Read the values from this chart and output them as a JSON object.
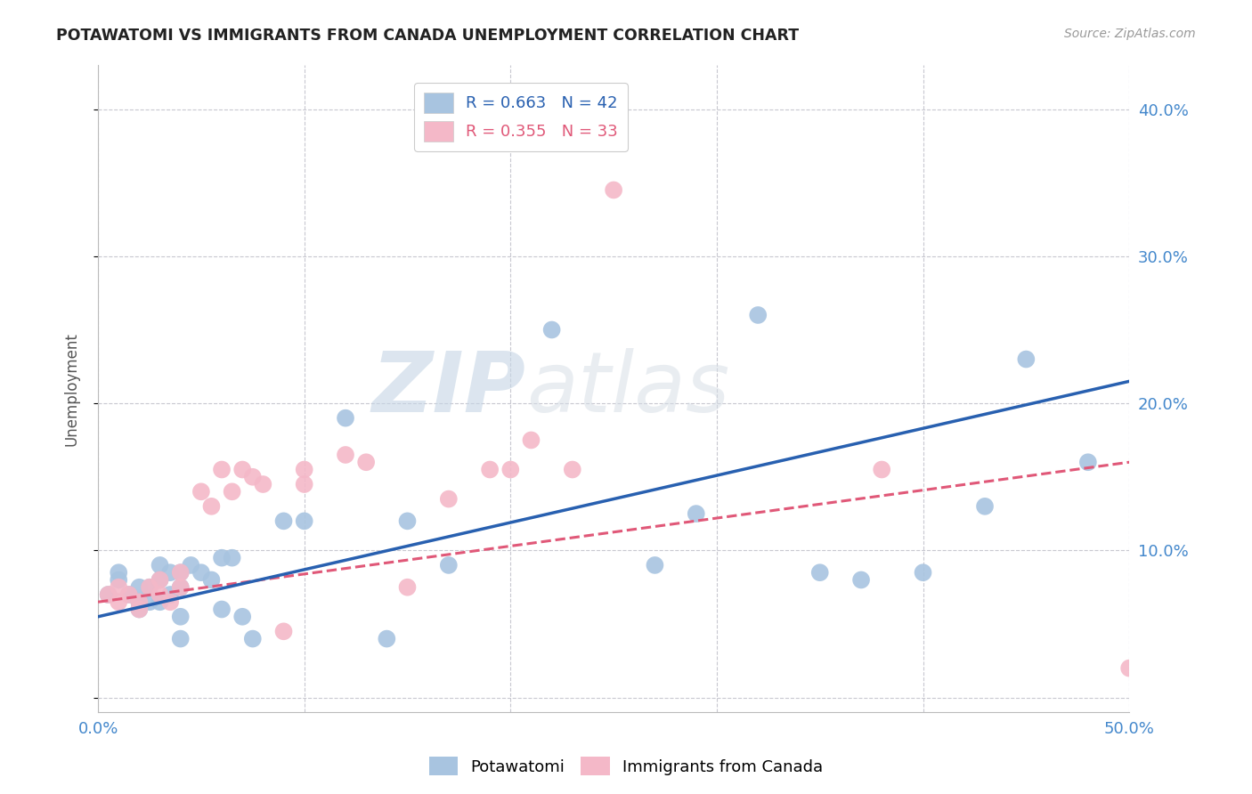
{
  "title": "POTAWATOMI VS IMMIGRANTS FROM CANADA UNEMPLOYMENT CORRELATION CHART",
  "source": "Source: ZipAtlas.com",
  "ylabel": "Unemployment",
  "xlim": [
    0.0,
    0.5
  ],
  "ylim": [
    -0.01,
    0.43
  ],
  "xticks": [
    0.0,
    0.1,
    0.2,
    0.3,
    0.4,
    0.5
  ],
  "xtick_labels": [
    "0.0%",
    "",
    "",
    "",
    "",
    "50.0%"
  ],
  "yticks": [
    0.0,
    0.1,
    0.2,
    0.3,
    0.4
  ],
  "ytick_labels": [
    "",
    "10.0%",
    "20.0%",
    "30.0%",
    "40.0%"
  ],
  "blue_R": 0.663,
  "blue_N": 42,
  "pink_R": 0.355,
  "pink_N": 33,
  "blue_color": "#a8c4e0",
  "pink_color": "#f4b8c8",
  "blue_line_color": "#2860b0",
  "pink_line_color": "#e05878",
  "legend_label_blue": "Potawatomi",
  "legend_label_pink": "Immigrants from Canada",
  "blue_scatter_x": [
    0.005,
    0.01,
    0.01,
    0.015,
    0.02,
    0.02,
    0.02,
    0.025,
    0.025,
    0.03,
    0.03,
    0.03,
    0.035,
    0.035,
    0.04,
    0.04,
    0.04,
    0.04,
    0.045,
    0.05,
    0.055,
    0.06,
    0.06,
    0.065,
    0.07,
    0.075,
    0.09,
    0.1,
    0.12,
    0.14,
    0.15,
    0.17,
    0.22,
    0.27,
    0.29,
    0.32,
    0.35,
    0.37,
    0.4,
    0.43,
    0.45,
    0.48
  ],
  "blue_scatter_y": [
    0.07,
    0.08,
    0.085,
    0.07,
    0.075,
    0.065,
    0.06,
    0.075,
    0.065,
    0.09,
    0.08,
    0.065,
    0.085,
    0.07,
    0.085,
    0.075,
    0.055,
    0.04,
    0.09,
    0.085,
    0.08,
    0.095,
    0.06,
    0.095,
    0.055,
    0.04,
    0.12,
    0.12,
    0.19,
    0.04,
    0.12,
    0.09,
    0.25,
    0.09,
    0.125,
    0.26,
    0.085,
    0.08,
    0.085,
    0.13,
    0.23,
    0.16
  ],
  "pink_scatter_x": [
    0.005,
    0.01,
    0.01,
    0.015,
    0.02,
    0.02,
    0.025,
    0.03,
    0.03,
    0.035,
    0.04,
    0.04,
    0.05,
    0.055,
    0.06,
    0.065,
    0.07,
    0.075,
    0.08,
    0.09,
    0.1,
    0.1,
    0.12,
    0.13,
    0.15,
    0.17,
    0.19,
    0.2,
    0.21,
    0.23,
    0.25,
    0.38,
    0.5
  ],
  "pink_scatter_y": [
    0.07,
    0.075,
    0.065,
    0.07,
    0.065,
    0.06,
    0.075,
    0.08,
    0.07,
    0.065,
    0.085,
    0.075,
    0.14,
    0.13,
    0.155,
    0.14,
    0.155,
    0.15,
    0.145,
    0.045,
    0.155,
    0.145,
    0.165,
    0.16,
    0.075,
    0.135,
    0.155,
    0.155,
    0.175,
    0.155,
    0.345,
    0.155,
    0.02
  ],
  "blue_trend_x": [
    0.0,
    0.5
  ],
  "blue_trend_y": [
    0.055,
    0.215
  ],
  "pink_trend_x": [
    0.0,
    0.5
  ],
  "pink_trend_y": [
    0.065,
    0.16
  ],
  "watermark_zip": "ZIP",
  "watermark_atlas": "atlas",
  "background_color": "#ffffff",
  "grid_color": "#c8c8d0"
}
